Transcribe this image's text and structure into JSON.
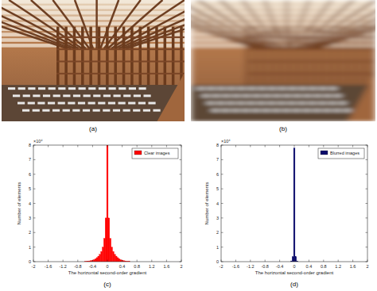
{
  "images": [
    {
      "caption": "(a)"
    },
    {
      "caption": "(b)"
    }
  ],
  "chart_data": [
    {
      "type": "histogram",
      "caption": "(c)",
      "xlabel": "The horizontal second-order gradient",
      "ylabel": "Number of elements",
      "y_multiplier": "×10⁴",
      "bins": [
        -0.62,
        -0.58,
        -0.54,
        -0.5,
        -0.46,
        -0.42,
        -0.38,
        -0.34,
        -0.3,
        -0.26,
        -0.22,
        -0.18,
        -0.14,
        -0.1,
        -0.06,
        -0.02,
        0.02,
        0.06,
        0.1,
        0.14,
        0.18,
        0.22,
        0.26,
        0.3,
        0.34,
        0.38,
        0.42,
        0.46,
        0.5,
        0.54,
        0.58,
        0.62
      ],
      "series": [
        {
          "name": "Clear images",
          "color": "#ff0000",
          "values": [
            0.01,
            0.02,
            0.03,
            0.05,
            0.07,
            0.1,
            0.14,
            0.2,
            0.28,
            0.38,
            0.5,
            0.7,
            1.0,
            1.6,
            3.0,
            8.0,
            3.0,
            1.6,
            1.0,
            0.7,
            0.5,
            0.38,
            0.28,
            0.2,
            0.14,
            0.1,
            0.07,
            0.05,
            0.03,
            0.02,
            0.01
          ]
        }
      ],
      "xlim": [
        -2,
        2
      ],
      "xticks": [
        -2,
        -1.6,
        -1.2,
        -0.8,
        -0.4,
        0,
        0.4,
        0.8,
        1.2,
        1.6,
        2
      ],
      "ylim": [
        0,
        8
      ],
      "yticks": [
        0,
        1,
        2,
        3,
        4,
        5,
        6,
        7,
        8
      ],
      "legend": "northeast"
    },
    {
      "type": "histogram",
      "caption": "(d)",
      "xlabel": "The horizontal second-order gradient",
      "ylabel": "Number of elements",
      "y_multiplier": "×10⁴",
      "bins": [
        -0.1,
        -0.06,
        -0.02,
        0.02,
        0.06,
        0.1
      ],
      "series": [
        {
          "name": "Blurred images",
          "color": "#0b0b6b",
          "values": [
            0.05,
            0.35,
            7.8,
            0.35,
            0.05
          ]
        }
      ],
      "xlim": [
        -2,
        2
      ],
      "xticks": [
        -2,
        -1.6,
        -1.2,
        -0.8,
        -0.4,
        0,
        0.4,
        0.8,
        1.2,
        1.6,
        2
      ],
      "ylim": [
        0,
        8
      ],
      "yticks": [
        0,
        1,
        2,
        3,
        4,
        5,
        6,
        7,
        8
      ],
      "legend": "northeast"
    }
  ]
}
